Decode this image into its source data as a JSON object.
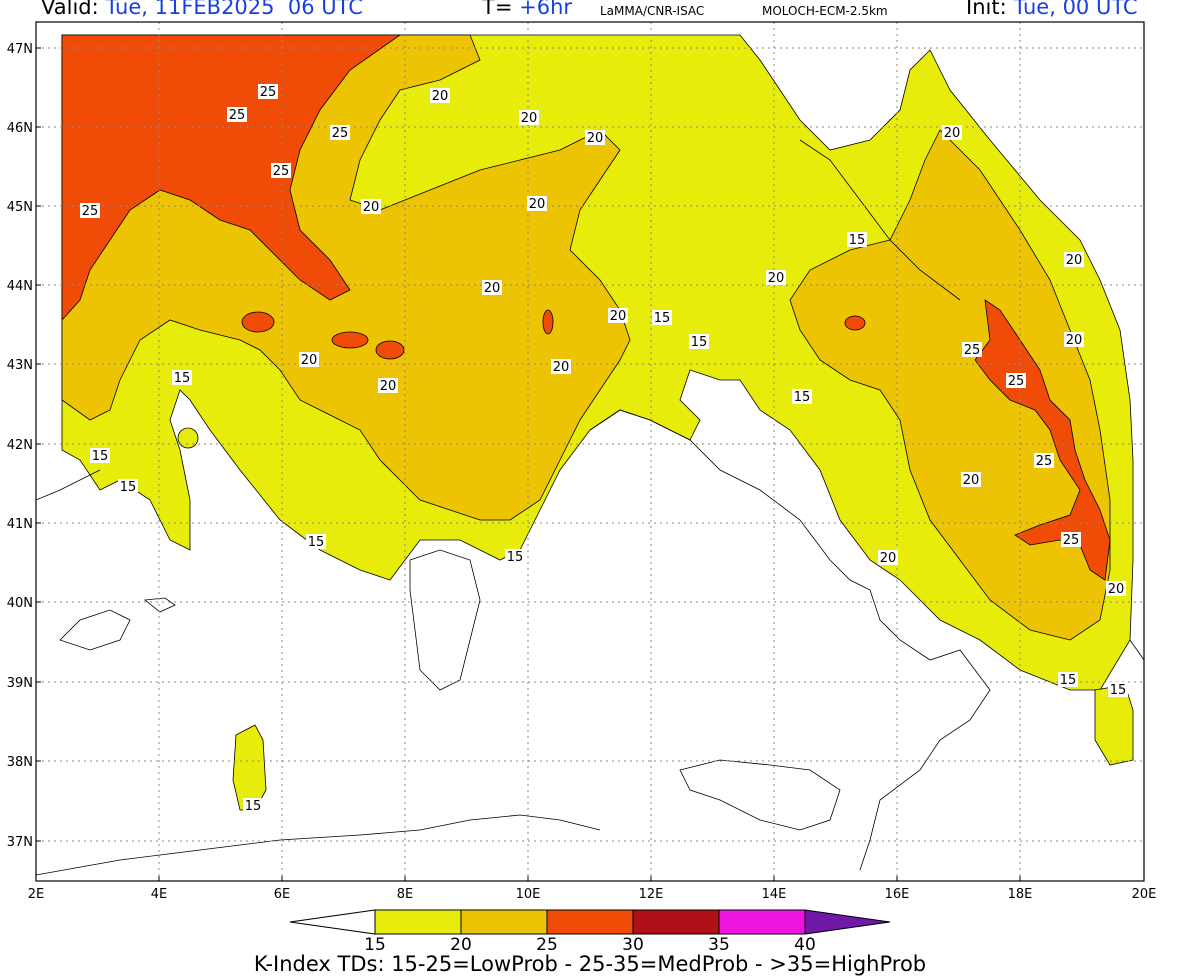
{
  "header": {
    "valid_key": "Valid:",
    "valid_value": "Tue, 11FEB2025  06 UTC",
    "t_key": "T=",
    "t_value": "+6hr",
    "center_org": "LaMMA/CNR-ISAC",
    "center_model": "MOLOCH-ECM-2.5km",
    "init_key": "Init:",
    "init_value": "Tue, 00 UTC"
  },
  "axes": {
    "lon_ticks": [
      "2E",
      "4E",
      "6E",
      "8E",
      "10E",
      "12E",
      "14E",
      "16E",
      "18E",
      "20E"
    ],
    "lat_ticks": [
      "47N",
      "46N",
      "45N",
      "44N",
      "43N",
      "42N",
      "41N",
      "40N",
      "39N",
      "38N",
      "37N"
    ]
  },
  "contour_labels": [
    "25",
    "25",
    "25",
    "25",
    "25",
    "20",
    "20",
    "20",
    "20",
    "20",
    "20",
    "20",
    "20",
    "20",
    "20",
    "15",
    "15",
    "15",
    "15",
    "15",
    "15",
    "15",
    "15",
    "20",
    "15",
    "20",
    "20",
    "25",
    "25",
    "20",
    "25",
    "20",
    "25",
    "20",
    "15",
    "15",
    "15",
    "20"
  ],
  "colorbar": {
    "labels": [
      "15",
      "20",
      "25",
      "30",
      "35",
      "40"
    ],
    "colors": [
      "#ffffff",
      "#e8ec0a",
      "#ecc404",
      "#f04c08",
      "#b01018",
      "#f014e0",
      "#7018a8"
    ]
  },
  "footer": "K-Index TDs: 15-25=LowProb - 25-35=MedProb - >35=HighProb"
}
